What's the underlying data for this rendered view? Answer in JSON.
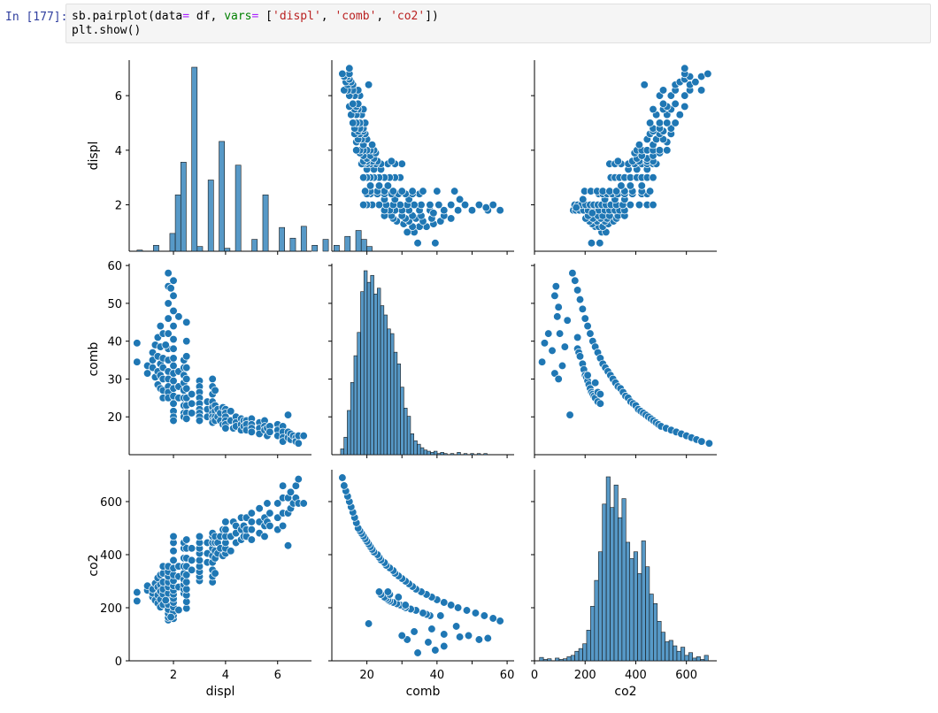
{
  "cell": {
    "prompt": "In [177]:",
    "code_line1": {
      "p1": "sb.pairplot(data",
      "p2": "=",
      "p3": " df, ",
      "p4": "vars",
      "p5": "=",
      "p6": " [",
      "p7": "'displ'",
      "p8": ", ",
      "p9": "'comb'",
      "p10": ", ",
      "p11": "'co2'",
      "p12": "])"
    },
    "code_line2": "plt.show()"
  },
  "colors": {
    "marker": "#1f77b4",
    "hist_fill": "#1f77b4",
    "axis": "#000000"
  },
  "chart_data": {
    "type": "scatter",
    "variables": [
      "displ",
      "comb",
      "co2"
    ],
    "axis_labels": {
      "x": [
        "displ",
        "comb",
        "co2"
      ],
      "y": [
        "displ",
        "comb",
        "co2"
      ]
    },
    "ticks": {
      "displ": {
        "values": [
          2,
          4,
          6
        ],
        "labels": [
          "2",
          "4",
          "6"
        ],
        "range": [
          0.3,
          7.3
        ]
      },
      "comb": {
        "values": [
          20,
          30,
          40,
          50,
          60
        ],
        "x_labels": [
          "20",
          "",
          "40",
          "",
          "60"
        ],
        "y_labels": [
          "20",
          "30",
          "40",
          "50",
          "60"
        ],
        "range": [
          10,
          62
        ]
      },
      "co2": {
        "values": [
          0,
          200,
          400,
          600
        ],
        "labels": [
          "0",
          "200",
          "400",
          "600"
        ],
        "range": [
          0,
          720
        ]
      }
    },
    "hist_displ": {
      "bin_start": 0.6,
      "bin_width": 0.21,
      "counts": [
        2,
        0,
        0,
        10,
        0,
        0,
        30,
        95,
        150,
        0,
        310,
        8,
        0,
        120,
        0,
        185,
        5,
        0,
        145,
        0,
        0,
        20,
        0,
        95,
        0,
        0,
        40,
        0,
        22,
        0,
        42,
        0,
        10,
        0,
        20,
        0,
        10,
        0,
        25,
        0,
        35,
        20,
        8
      ]
    },
    "hist_comb": {
      "bin_start": 12.5,
      "bin_width": 0.95,
      "counts": [
        5,
        15,
        38,
        62,
        85,
        105,
        140,
        158,
        148,
        154,
        138,
        143,
        128,
        120,
        108,
        104,
        88,
        78,
        58,
        40,
        33,
        18,
        12,
        9,
        6,
        4,
        3,
        2,
        3,
        1,
        2,
        1,
        0,
        1,
        0,
        2,
        0,
        1,
        0,
        1,
        0,
        1,
        0,
        1
      ]
    },
    "hist_co2": {
      "bin_start": 20,
      "bin_width": 15.5,
      "counts": [
        5,
        2,
        3,
        0,
        4,
        2,
        3,
        6,
        8,
        14,
        18,
        25,
        45,
        80,
        118,
        160,
        230,
        270,
        225,
        258,
        210,
        238,
        174,
        150,
        160,
        128,
        176,
        138,
        98,
        84,
        58,
        42,
        28,
        30,
        22,
        14,
        20,
        8,
        12,
        4,
        6,
        2,
        8
      ]
    },
    "scatter_displ_comb": [
      [
        0.6,
        39.5
      ],
      [
        0.6,
        34.5
      ],
      [
        1.0,
        33.5
      ],
      [
        1.0,
        31.5
      ],
      [
        1.2,
        37.0
      ],
      [
        1.2,
        35.0
      ],
      [
        1.2,
        33.0
      ],
      [
        1.3,
        30.5
      ],
      [
        1.3,
        39.0
      ],
      [
        1.4,
        41.0
      ],
      [
        1.4,
        36.0
      ],
      [
        1.4,
        32.0
      ],
      [
        1.4,
        28.5
      ],
      [
        1.5,
        44.0
      ],
      [
        1.5,
        38.5
      ],
      [
        1.5,
        34.0
      ],
      [
        1.5,
        31.0
      ],
      [
        1.5,
        27.5
      ],
      [
        1.6,
        35.5
      ],
      [
        1.6,
        33.0
      ],
      [
        1.6,
        30.0
      ],
      [
        1.6,
        27.0
      ],
      [
        1.6,
        25.0
      ],
      [
        1.6,
        42.0
      ],
      [
        1.8,
        58.0
      ],
      [
        1.8,
        54.5
      ],
      [
        1.8,
        50.0
      ],
      [
        1.8,
        46.0
      ],
      [
        1.8,
        42.0
      ],
      [
        1.8,
        38.0
      ],
      [
        1.8,
        35.0
      ],
      [
        1.8,
        32.0
      ],
      [
        1.8,
        30.0
      ],
      [
        1.8,
        28.0
      ],
      [
        1.8,
        26.5
      ],
      [
        1.8,
        25.0
      ],
      [
        2.0,
        56.0
      ],
      [
        2.0,
        52.0
      ],
      [
        2.0,
        48.0
      ],
      [
        2.0,
        44.0
      ],
      [
        2.0,
        40.5
      ],
      [
        2.0,
        38.0
      ],
      [
        2.0,
        35.5
      ],
      [
        2.0,
        33.5
      ],
      [
        2.0,
        31.5
      ],
      [
        2.0,
        29.5
      ],
      [
        2.0,
        27.5
      ],
      [
        2.0,
        25.5
      ],
      [
        2.0,
        23.5
      ],
      [
        2.0,
        21.5
      ],
      [
        2.0,
        20.0
      ],
      [
        2.0,
        19.0
      ],
      [
        1.9,
        54.0
      ],
      [
        1.7,
        39.0
      ],
      [
        2.2,
        46.5
      ],
      [
        2.2,
        32.0
      ],
      [
        2.2,
        28.0
      ],
      [
        2.2,
        25.0
      ],
      [
        2.4,
        35.0
      ],
      [
        2.4,
        33.0
      ],
      [
        2.4,
        31.0
      ],
      [
        2.4,
        29.0
      ],
      [
        2.4,
        27.0
      ],
      [
        2.4,
        25.0
      ],
      [
        2.4,
        23.0
      ],
      [
        2.4,
        21.0
      ],
      [
        2.4,
        20.0
      ],
      [
        2.5,
        45.0
      ],
      [
        2.5,
        40.0
      ],
      [
        2.5,
        36.0
      ],
      [
        2.5,
        33.0
      ],
      [
        2.5,
        30.0
      ],
      [
        2.5,
        27.5
      ],
      [
        2.5,
        25.0
      ],
      [
        2.5,
        23.0
      ],
      [
        2.5,
        21.0
      ],
      [
        2.5,
        19.5
      ],
      [
        2.7,
        26.0
      ],
      [
        2.7,
        23.5
      ],
      [
        2.7,
        21.0
      ],
      [
        3.0,
        29.5
      ],
      [
        3.0,
        28.0
      ],
      [
        3.0,
        26.5
      ],
      [
        3.0,
        25.0
      ],
      [
        3.0,
        23.5
      ],
      [
        3.0,
        22.0
      ],
      [
        3.0,
        21.0
      ],
      [
        3.0,
        20.0
      ],
      [
        3.0,
        19.0
      ],
      [
        3.3,
        24.0
      ],
      [
        3.3,
        22.0
      ],
      [
        3.3,
        20.0
      ],
      [
        3.5,
        30.0
      ],
      [
        3.5,
        28.0
      ],
      [
        3.5,
        26.0
      ],
      [
        3.5,
        24.0
      ],
      [
        3.5,
        22.5
      ],
      [
        3.5,
        21.0
      ],
      [
        3.5,
        20.0
      ],
      [
        3.5,
        19.0
      ],
      [
        3.5,
        18.5
      ],
      [
        3.6,
        27.0
      ],
      [
        3.6,
        23.0
      ],
      [
        3.6,
        21.5
      ],
      [
        3.6,
        20.0
      ],
      [
        3.6,
        19.0
      ],
      [
        3.7,
        22.0
      ],
      [
        3.7,
        20.0
      ],
      [
        3.8,
        21.0
      ],
      [
        3.8,
        19.0
      ],
      [
        3.9,
        22.5
      ],
      [
        3.9,
        18.0
      ],
      [
        4.0,
        22.0
      ],
      [
        4.0,
        21.0
      ],
      [
        4.0,
        20.0
      ],
      [
        4.0,
        19.0
      ],
      [
        4.0,
        18.0
      ],
      [
        4.0,
        17.0
      ],
      [
        4.2,
        21.5
      ],
      [
        4.2,
        19.0
      ],
      [
        4.3,
        17.0
      ],
      [
        4.4,
        20.0
      ],
      [
        4.4,
        18.5
      ],
      [
        4.4,
        17.5
      ],
      [
        4.6,
        19.5
      ],
      [
        4.6,
        18.0
      ],
      [
        4.6,
        16.5
      ],
      [
        4.7,
        19.0
      ],
      [
        4.7,
        17.5
      ],
      [
        4.8,
        19.0
      ],
      [
        4.8,
        18.0
      ],
      [
        4.8,
        16.5
      ],
      [
        5.0,
        19.5
      ],
      [
        5.0,
        18.0
      ],
      [
        5.0,
        17.0
      ],
      [
        5.0,
        16.0
      ],
      [
        5.3,
        18.5
      ],
      [
        5.3,
        17.0
      ],
      [
        5.3,
        15.5
      ],
      [
        5.5,
        19.0
      ],
      [
        5.5,
        17.5
      ],
      [
        5.5,
        16.5
      ],
      [
        5.6,
        17.0
      ],
      [
        5.6,
        15.0
      ],
      [
        5.7,
        17.5
      ],
      [
        5.7,
        16.0
      ],
      [
        6.0,
        18.0
      ],
      [
        6.0,
        16.5
      ],
      [
        6.0,
        15.0
      ],
      [
        6.2,
        17.5
      ],
      [
        6.2,
        16.0
      ],
      [
        6.2,
        14.5
      ],
      [
        6.2,
        13.5
      ],
      [
        6.4,
        16.0
      ],
      [
        6.4,
        14.5
      ],
      [
        6.4,
        20.5
      ],
      [
        6.5,
        15.5
      ],
      [
        6.5,
        14.0
      ],
      [
        6.6,
        15.0
      ],
      [
        6.7,
        14.5
      ],
      [
        6.7,
        13.5
      ],
      [
        6.8,
        15.0
      ],
      [
        6.8,
        13.0
      ],
      [
        7.0,
        15.0
      ]
    ],
    "scatter_co2_comb": [
      [
        30,
        34.5
      ],
      [
        40,
        39.5
      ],
      [
        55,
        42.0
      ],
      [
        70,
        37.5
      ],
      [
        80,
        52.0
      ],
      [
        85,
        54.5
      ],
      [
        90,
        46.5
      ],
      [
        95,
        49.0
      ],
      [
        100,
        42.0
      ],
      [
        80,
        31.5
      ],
      [
        95,
        30.0
      ],
      [
        110,
        33.5
      ],
      [
        120,
        38.5
      ],
      [
        130,
        45.5
      ],
      [
        140,
        20.5
      ],
      [
        150,
        58.0
      ],
      [
        160,
        56.0
      ],
      [
        170,
        53.5
      ],
      [
        180,
        51.0
      ],
      [
        190,
        48.5
      ],
      [
        200,
        46.0
      ],
      [
        210,
        44.0
      ],
      [
        220,
        42.0
      ],
      [
        230,
        40.0
      ],
      [
        240,
        38.5
      ],
      [
        250,
        37.0
      ],
      [
        260,
        35.5
      ],
      [
        270,
        34.0
      ],
      [
        280,
        33.0
      ],
      [
        290,
        32.0
      ],
      [
        300,
        31.0
      ],
      [
        310,
        30.0
      ],
      [
        320,
        29.0
      ],
      [
        330,
        28.0
      ],
      [
        340,
        27.5
      ],
      [
        350,
        26.5
      ],
      [
        360,
        25.5
      ],
      [
        370,
        25.0
      ],
      [
        380,
        24.0
      ],
      [
        390,
        23.5
      ],
      [
        400,
        23.0
      ],
      [
        410,
        22.0
      ],
      [
        420,
        21.5
      ],
      [
        430,
        21.0
      ],
      [
        440,
        20.5
      ],
      [
        450,
        20.0
      ],
      [
        460,
        19.5
      ],
      [
        470,
        19.0
      ],
      [
        480,
        18.5
      ],
      [
        490,
        18.0
      ],
      [
        500,
        17.5
      ],
      [
        520,
        17.0
      ],
      [
        540,
        16.5
      ],
      [
        560,
        16.0
      ],
      [
        580,
        15.5
      ],
      [
        600,
        15.0
      ],
      [
        620,
        14.5
      ],
      [
        640,
        14.0
      ],
      [
        660,
        13.5
      ],
      [
        690,
        13.0
      ],
      [
        170,
        38.0
      ],
      [
        175,
        37.0
      ],
      [
        180,
        36.0
      ],
      [
        190,
        34.0
      ],
      [
        195,
        32.5
      ],
      [
        200,
        31.0
      ],
      [
        205,
        30.5
      ],
      [
        210,
        29.5
      ],
      [
        215,
        28.5
      ],
      [
        220,
        27.5
      ],
      [
        225,
        26.5
      ],
      [
        230,
        26.0
      ],
      [
        235,
        25.5
      ],
      [
        240,
        25.0
      ],
      [
        250,
        24.0
      ],
      [
        260,
        23.5
      ],
      [
        170,
        41.0
      ],
      [
        210,
        31.0
      ],
      [
        240,
        29.0
      ],
      [
        250,
        26.5
      ],
      [
        260,
        26.0
      ]
    ]
  }
}
